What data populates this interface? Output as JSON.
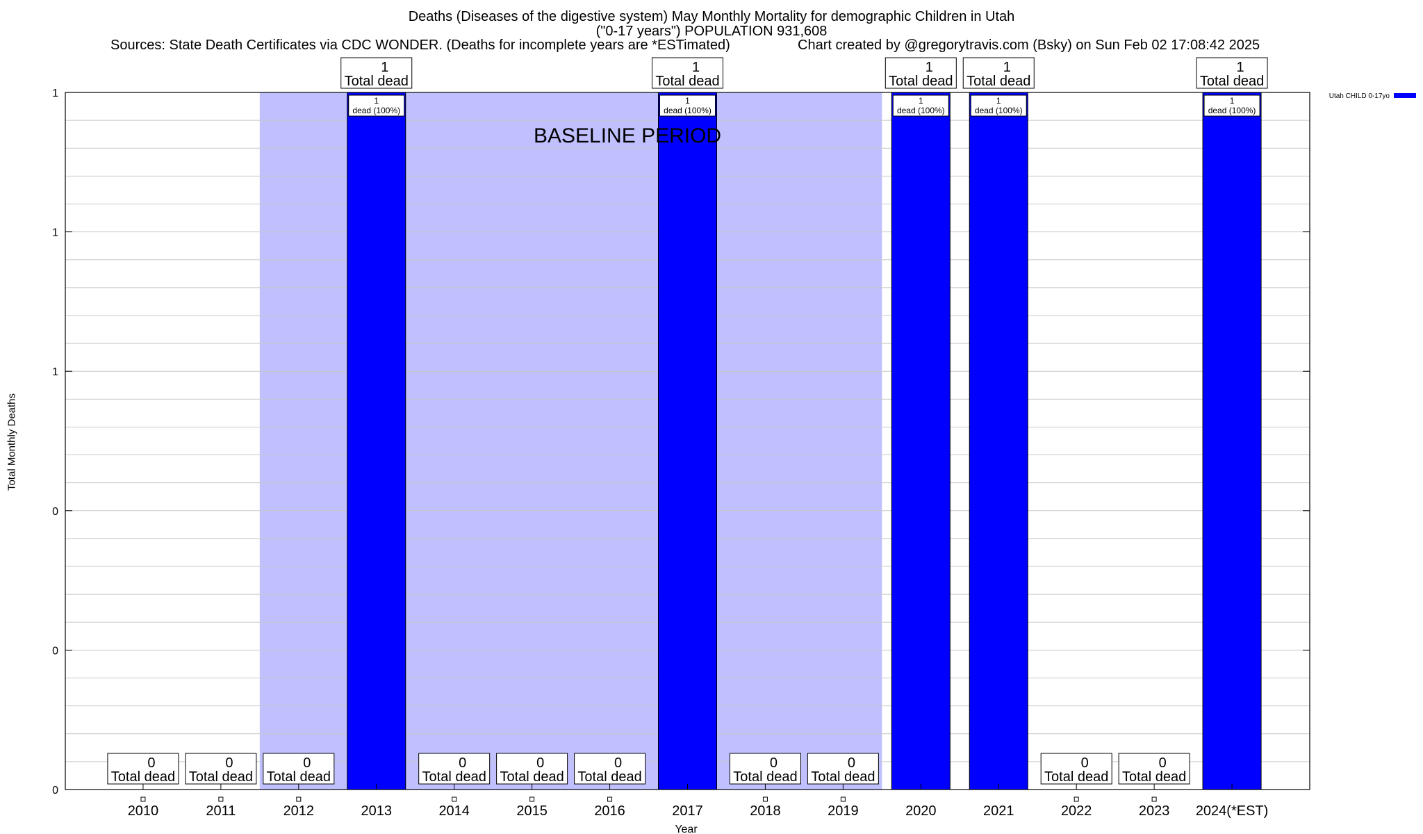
{
  "header": {
    "title_line1": "Deaths (Diseases of the digestive system) May Monthly Mortality for demographic Children in Utah",
    "title_line2": "(\"0-17 years\") POPULATION 931,608",
    "sources": "Sources: State Death Certificates via CDC WONDER. (Deaths for incomplete years are *ESTimated)",
    "credit": "Chart created by @gregorytravis.com (Bsky) on Sun Feb 02 17:08:42 2025"
  },
  "chart_data": {
    "type": "bar",
    "title": "Deaths (Diseases of the digestive system) May Monthly Mortality for demographic Children in Utah",
    "xlabel": "Year",
    "ylabel": "Total Monthly Deaths",
    "categories": [
      "2010",
      "2011",
      "2012",
      "2013",
      "2014",
      "2015",
      "2016",
      "2017",
      "2018",
      "2019",
      "2020",
      "2021",
      "2022",
      "2023",
      "2024(*EST)"
    ],
    "series": [
      {
        "name": "Utah CHILD 0-17yo",
        "values": [
          0,
          0,
          0,
          1,
          0,
          0,
          0,
          1,
          0,
          0,
          1,
          1,
          0,
          0,
          1
        ],
        "color": "#0000ff"
      }
    ],
    "ylim": [
      0,
      1
    ],
    "y_ticks": [
      {
        "value": 0,
        "label": "0"
      },
      {
        "value": 0.2,
        "label": "0"
      },
      {
        "value": 0.4,
        "label": "0"
      },
      {
        "value": 0.6,
        "label": "1"
      },
      {
        "value": 0.8,
        "label": "1"
      },
      {
        "value": 1,
        "label": "1"
      }
    ],
    "total_label_suffix": "Total dead",
    "bar_label_suffix": "dead (100%)",
    "baseline": {
      "label": "BASELINE PERIOD",
      "from_category": "2012",
      "to_category": "2019",
      "color": "#c0c0ff"
    },
    "legend": {
      "position": "top-right",
      "text": "Utah CHILD 0-17yo"
    },
    "grid": true
  }
}
